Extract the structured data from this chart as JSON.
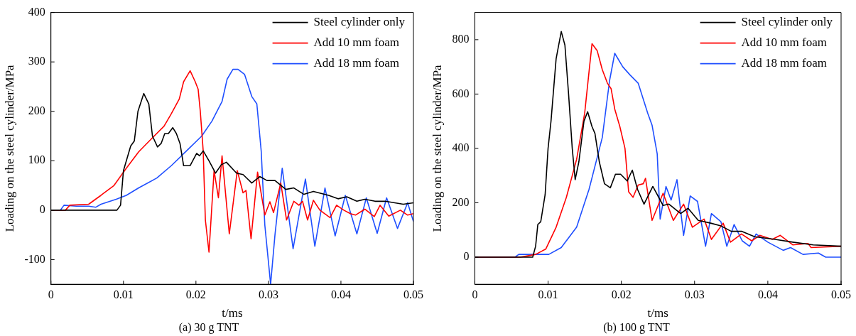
{
  "chart_data": [
    {
      "type": "line",
      "title": "(a) 30 g TNT",
      "xlabel": "t/ms",
      "ylabel": "Loading on the steel cylinder/MPa",
      "xlim": [
        0,
        0.05
      ],
      "xticks": [
        0,
        0.01,
        0.02,
        0.03,
        0.04,
        0.05
      ],
      "ylim": [
        -150,
        400
      ],
      "yticks": [
        -100,
        0,
        100,
        200,
        300,
        400
      ],
      "grid": false,
      "legend": "top right",
      "marker": "none",
      "line_style": "solid",
      "series": [
        {
          "name": "Steel cylinder only",
          "color": "#000000",
          "x": [
            0,
            0.0091,
            0.0096,
            0.01,
            0.011,
            0.0115,
            0.012,
            0.0128,
            0.0135,
            0.014,
            0.0147,
            0.0152,
            0.0157,
            0.0162,
            0.0168,
            0.0173,
            0.0178,
            0.0183,
            0.0192,
            0.0201,
            0.0205,
            0.021,
            0.0218,
            0.0227,
            0.0235,
            0.0242,
            0.0256,
            0.0265,
            0.0277,
            0.0288,
            0.0298,
            0.0309,
            0.0324,
            0.0335,
            0.0349,
            0.0362,
            0.0383,
            0.0396,
            0.0408,
            0.0422,
            0.0433,
            0.0447,
            0.0461,
            0.0486,
            0.05
          ],
          "values": [
            0,
            0,
            10,
            80,
            130,
            140,
            200,
            236,
            215,
            150,
            128,
            135,
            155,
            155,
            167,
            155,
            135,
            90,
            90,
            115,
            110,
            120,
            100,
            75,
            92,
            97,
            75,
            72,
            55,
            68,
            60,
            60,
            42,
            45,
            32,
            38,
            30,
            23,
            27,
            18,
            22,
            18,
            18,
            12,
            15
          ]
        },
        {
          "name": "Add 10 mm foam",
          "color": "#ff0000",
          "x": [
            0,
            0.002,
            0.0026,
            0.0052,
            0.0069,
            0.0087,
            0.0104,
            0.0121,
            0.0139,
            0.0156,
            0.0166,
            0.0177,
            0.0183,
            0.0192,
            0.0199,
            0.0203,
            0.0206,
            0.021,
            0.0213,
            0.0218,
            0.0225,
            0.0231,
            0.0236,
            0.0246,
            0.0257,
            0.0265,
            0.0269,
            0.0276,
            0.0285,
            0.0295,
            0.0302,
            0.0307,
            0.0317,
            0.0325,
            0.0335,
            0.0342,
            0.0347,
            0.0354,
            0.0362,
            0.0371,
            0.0385,
            0.0394,
            0.0404,
            0.0413,
            0.042,
            0.0433,
            0.0446,
            0.0454,
            0.0466,
            0.0482,
            0.0492,
            0.05
          ],
          "values": [
            0,
            0,
            10,
            12,
            30,
            50,
            85,
            118,
            145,
            170,
            195,
            225,
            260,
            282,
            260,
            245,
            200,
            120,
            -20,
            -85,
            80,
            25,
            110,
            -48,
            80,
            35,
            40,
            -58,
            77,
            -10,
            17,
            -5,
            55,
            -20,
            18,
            10,
            18,
            -20,
            20,
            0,
            -15,
            10,
            0,
            -7,
            -10,
            2,
            -13,
            10,
            -12,
            0,
            -10,
            -7
          ]
        },
        {
          "name": "Add 18 mm foam",
          "color": "#1f4fff",
          "x": [
            0,
            0.0013,
            0.0018,
            0.0035,
            0.0052,
            0.0062,
            0.0069,
            0.009,
            0.0104,
            0.0121,
            0.0146,
            0.0166,
            0.0187,
            0.0208,
            0.0222,
            0.0236,
            0.0243,
            0.0251,
            0.0258,
            0.0267,
            0.0277,
            0.0284,
            0.029,
            0.0295,
            0.0303,
            0.0309,
            0.0319,
            0.0334,
            0.0351,
            0.0364,
            0.0378,
            0.0392,
            0.0406,
            0.0422,
            0.0435,
            0.045,
            0.0463,
            0.0478,
            0.0492,
            0.05
          ],
          "values": [
            0,
            0,
            10,
            8,
            8,
            6,
            12,
            22,
            30,
            45,
            65,
            90,
            120,
            150,
            180,
            220,
            265,
            285,
            285,
            275,
            230,
            215,
            120,
            -30,
            -150,
            -50,
            85,
            -78,
            63,
            -73,
            45,
            -52,
            30,
            -48,
            25,
            -47,
            25,
            -37,
            15,
            -23
          ]
        }
      ]
    },
    {
      "type": "line",
      "title": "(b) 100 g TNT",
      "xlabel": "t/ms",
      "ylabel": "Loading on the steel cylinder/MPa",
      "xlim": [
        0,
        0.05
      ],
      "xticks": [
        0,
        0.01,
        0.02,
        0.03,
        0.04,
        0.05
      ],
      "ylim": [
        -100,
        900
      ],
      "yticks": [
        0,
        200,
        400,
        600,
        800
      ],
      "grid": false,
      "legend": "top right",
      "marker": "none",
      "line_style": "solid",
      "series": [
        {
          "name": "Steel cylinder only",
          "color": "#000000",
          "x": [
            0,
            0.0079,
            0.0083,
            0.0086,
            0.009,
            0.0096,
            0.01,
            0.0104,
            0.0111,
            0.0118,
            0.0123,
            0.0128,
            0.0133,
            0.0137,
            0.0142,
            0.0149,
            0.0154,
            0.016,
            0.0164,
            0.017,
            0.0177,
            0.0185,
            0.0192,
            0.0199,
            0.0208,
            0.0215,
            0.0222,
            0.0231,
            0.0243,
            0.0257,
            0.0265,
            0.0281,
            0.0291,
            0.0305,
            0.0322,
            0.0336,
            0.035,
            0.0364,
            0.0382,
            0.041,
            0.0434,
            0.0462,
            0.05
          ],
          "values": [
            0,
            0,
            40,
            120,
            130,
            230,
            400,
            500,
            730,
            830,
            780,
            600,
            400,
            285,
            350,
            500,
            535,
            480,
            455,
            350,
            270,
            255,
            305,
            305,
            280,
            320,
            250,
            195,
            260,
            190,
            195,
            160,
            180,
            135,
            125,
            115,
            95,
            95,
            75,
            65,
            55,
            45,
            40
          ]
        },
        {
          "name": "Add 10 mm foam",
          "color": "#ff0000",
          "x": [
            0,
            0.0062,
            0.0083,
            0.0097,
            0.0111,
            0.0125,
            0.0139,
            0.015,
            0.0157,
            0.016,
            0.0167,
            0.0174,
            0.0181,
            0.0186,
            0.0191,
            0.0198,
            0.0205,
            0.021,
            0.0216,
            0.0223,
            0.023,
            0.0233,
            0.0242,
            0.0257,
            0.0271,
            0.0285,
            0.0297,
            0.0313,
            0.0323,
            0.0339,
            0.0349,
            0.0364,
            0.0378,
            0.0389,
            0.0406,
            0.0417,
            0.0434,
            0.0455,
            0.0459,
            0.05
          ],
          "values": [
            0,
            0,
            10,
            30,
            110,
            220,
            360,
            530,
            710,
            785,
            760,
            690,
            640,
            620,
            545,
            480,
            400,
            240,
            220,
            265,
            270,
            290,
            135,
            235,
            135,
            195,
            110,
            140,
            65,
            125,
            55,
            85,
            60,
            80,
            65,
            80,
            45,
            50,
            35,
            40
          ]
        },
        {
          "name": "Add 18 mm foam",
          "color": "#1f4fff",
          "x": [
            0,
            0.0055,
            0.006,
            0.0101,
            0.0118,
            0.0139,
            0.0156,
            0.0174,
            0.0184,
            0.0191,
            0.0202,
            0.0212,
            0.0223,
            0.0236,
            0.0242,
            0.0249,
            0.0253,
            0.0261,
            0.0268,
            0.0276,
            0.0285,
            0.0294,
            0.0304,
            0.0315,
            0.0323,
            0.0336,
            0.0344,
            0.0354,
            0.0365,
            0.0375,
            0.0384,
            0.04,
            0.0421,
            0.0431,
            0.0448,
            0.0469,
            0.0479,
            0.05
          ],
          "values": [
            0,
            0,
            10,
            10,
            35,
            110,
            250,
            440,
            650,
            750,
            700,
            670,
            640,
            530,
            485,
            380,
            140,
            260,
            210,
            285,
            80,
            225,
            205,
            40,
            160,
            130,
            40,
            120,
            60,
            40,
            85,
            55,
            25,
            35,
            10,
            15,
            0,
            0
          ]
        }
      ]
    }
  ]
}
